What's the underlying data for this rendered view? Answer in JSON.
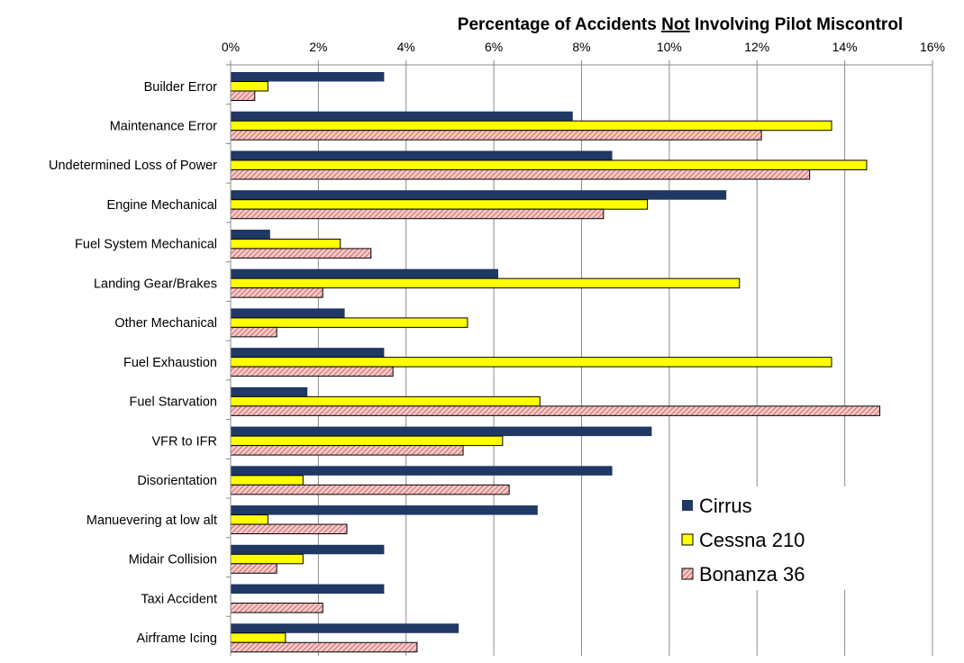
{
  "chart_data": {
    "type": "bar",
    "orientation": "horizontal",
    "title_parts": {
      "before": "Percentage of Accidents ",
      "underlined": "Not",
      "after": " Involving Pilot Miscontrol"
    },
    "xlabel": "",
    "ylabel": "",
    "xlim": [
      0,
      16
    ],
    "x_ticks": [
      "0%",
      "2%",
      "4%",
      "6%",
      "8%",
      "10%",
      "12%",
      "14%",
      "16%"
    ],
    "x_axis_position": "top",
    "grid": "vertical",
    "legend_position": "bottom-right",
    "categories": [
      "Builder Error",
      "Maintenance Error",
      "Undetermined Loss of Power",
      "Engine Mechanical",
      "Fuel System Mechanical",
      "Landing Gear/Brakes",
      "Other Mechanical",
      "Fuel Exhaustion",
      "Fuel Starvation",
      "VFR to IFR",
      "Disorientation",
      "Manuevering at low alt",
      "Midair Collision",
      "Taxi Accident",
      "Airframe Icing"
    ],
    "series": [
      {
        "name": "Cirrus",
        "color": "#1f3864",
        "pattern": "solid",
        "values": [
          3.5,
          7.8,
          8.7,
          11.3,
          0.9,
          6.1,
          2.6,
          3.5,
          1.75,
          9.6,
          8.7,
          7.0,
          3.5,
          3.5,
          5.2
        ]
      },
      {
        "name": "Cessna 210",
        "color": "#ffff00",
        "pattern": "solid",
        "values": [
          0.85,
          13.7,
          14.5,
          9.5,
          2.5,
          11.6,
          5.4,
          13.7,
          7.05,
          6.2,
          1.65,
          0.85,
          1.65,
          0,
          1.25
        ]
      },
      {
        "name": "Bonanza 36",
        "color": "#f2b8b8",
        "pattern": "hatched",
        "values": [
          0.55,
          12.1,
          13.2,
          8.5,
          3.2,
          2.1,
          1.05,
          3.7,
          14.8,
          5.3,
          6.35,
          2.65,
          1.05,
          2.1,
          4.25
        ]
      }
    ]
  }
}
